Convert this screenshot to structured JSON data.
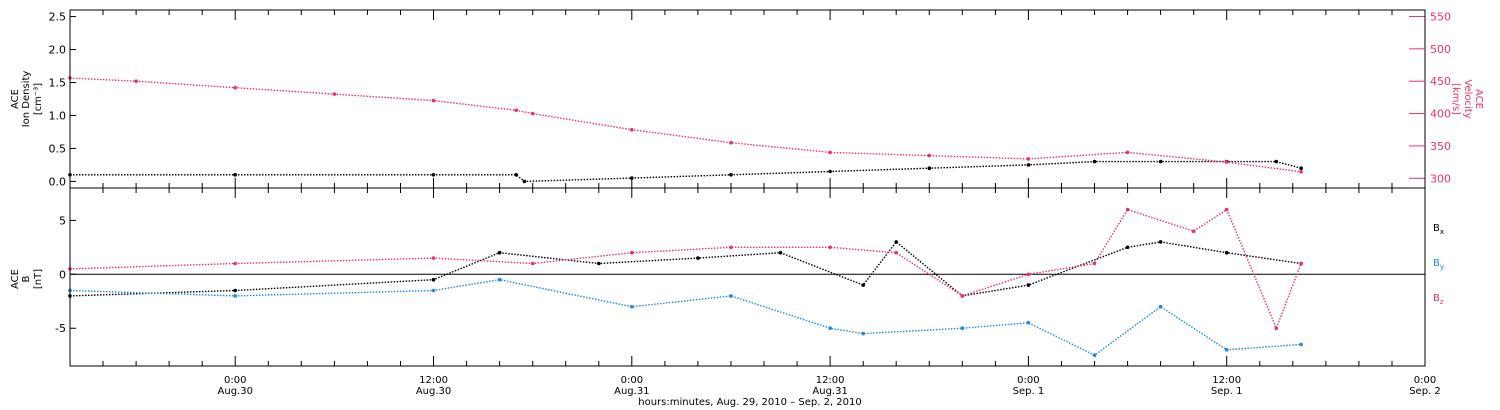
{
  "figure": {
    "xlabel": "hours:minutes, Aug. 29, 2010 – Sep.  2, 2010",
    "time_axis": {
      "range": [
        "2010-08-29T14:00",
        "2010-09-02T00:00"
      ],
      "ticks": [
        {
          "t": "2010-08-30T00:00",
          "time": "0:00",
          "date": "Aug.30"
        },
        {
          "t": "2010-08-30T12:00",
          "time": "12:00",
          "date": "Aug.30"
        },
        {
          "t": "2010-08-31T00:00",
          "time": "0:00",
          "date": "Aug.31"
        },
        {
          "t": "2010-08-31T12:00",
          "time": "12:00",
          "date": "Aug.31"
        },
        {
          "t": "2010-09-01T00:00",
          "time": "0:00",
          "date": "Sep. 1"
        },
        {
          "t": "2010-09-01T12:00",
          "time": "12:00",
          "date": "Sep. 1"
        },
        {
          "t": "2010-09-02T00:00",
          "time": "0:00",
          "date": "Sep. 2"
        }
      ]
    },
    "colors": {
      "black": "#000000",
      "pink": "#e8336a",
      "blue": "#1e88e5"
    }
  },
  "chart_data": [
    {
      "type": "scatter",
      "panel": "top",
      "ylabel_lines": [
        "ACE",
        "Ion Density"
      ],
      "ylabel_unit": "[cm⁻³]",
      "ylim": [
        -0.1,
        2.6
      ],
      "yticks": [
        "0.0",
        "0.5",
        "1.0",
        "1.5",
        "2.0",
        "2.5"
      ],
      "y2label_lines": [
        "ACE",
        "Velocity"
      ],
      "y2label_unit": "[km/s]",
      "y2lim": [
        285,
        560
      ],
      "y2ticks": [
        "300",
        "350",
        "400",
        "450",
        "500",
        "550"
      ],
      "series": [
        {
          "color": "black",
          "axis": "left",
          "x": [
            "2010-08-29T14:00",
            "2010-08-30T00:00",
            "2010-08-30T12:00",
            "2010-08-30T17:00",
            "2010-08-30T17:30",
            "2010-08-31T00:00",
            "2010-08-31T06:00",
            "2010-08-31T12:00",
            "2010-08-31T18:00",
            "2010-09-01T00:00",
            "2010-09-01T04:00",
            "2010-09-01T08:00",
            "2010-09-01T12:00",
            "2010-09-01T15:00",
            "2010-09-01T16:30"
          ],
          "y": [
            0.1,
            0.1,
            0.1,
            0.1,
            0.0,
            0.05,
            0.1,
            0.15,
            0.2,
            0.25,
            0.3,
            0.3,
            0.3,
            0.3,
            0.2
          ]
        },
        {
          "color": "pink",
          "axis": "right",
          "x": [
            "2010-08-29T14:00",
            "2010-08-29T18:00",
            "2010-08-30T00:00",
            "2010-08-30T06:00",
            "2010-08-30T12:00",
            "2010-08-30T17:00",
            "2010-08-30T18:00",
            "2010-08-31T00:00",
            "2010-08-31T06:00",
            "2010-08-31T12:00",
            "2010-08-31T18:00",
            "2010-09-01T00:00",
            "2010-09-01T06:00",
            "2010-09-01T12:00",
            "2010-09-01T16:30"
          ],
          "y": [
            455,
            450,
            440,
            430,
            420,
            405,
            400,
            375,
            355,
            340,
            335,
            330,
            340,
            325,
            310
          ]
        }
      ]
    },
    {
      "type": "scatter",
      "panel": "bottom",
      "ylabel_lines": [
        "ACE",
        "B"
      ],
      "ylabel_unit": "[nT]",
      "ylim": [
        -8.5,
        8
      ],
      "yticks": [
        "-5",
        "0",
        "5"
      ],
      "series": [
        {
          "name": "B",
          "sub": "x",
          "color": "black",
          "x": [
            "2010-08-29T14:00",
            "2010-08-30T00:00",
            "2010-08-30T12:00",
            "2010-08-30T16:00",
            "2010-08-30T22:00",
            "2010-08-31T04:00",
            "2010-08-31T09:00",
            "2010-08-31T14:00",
            "2010-08-31T16:00",
            "2010-08-31T20:00",
            "2010-09-01T00:00",
            "2010-09-01T06:00",
            "2010-09-01T08:00",
            "2010-09-01T12:00",
            "2010-09-01T16:30"
          ],
          "y": [
            -2,
            -1.5,
            -0.5,
            2,
            1,
            1.5,
            2,
            -1,
            3,
            -2,
            -1,
            2.5,
            3,
            2,
            1
          ]
        },
        {
          "name": "B",
          "sub": "y",
          "color": "blue",
          "x": [
            "2010-08-29T14:00",
            "2010-08-30T00:00",
            "2010-08-30T12:00",
            "2010-08-30T16:00",
            "2010-08-31T00:00",
            "2010-08-31T06:00",
            "2010-08-31T12:00",
            "2010-08-31T14:00",
            "2010-08-31T20:00",
            "2010-09-01T00:00",
            "2010-09-01T04:00",
            "2010-09-01T08:00",
            "2010-09-01T12:00",
            "2010-09-01T16:30"
          ],
          "y": [
            -1.5,
            -2,
            -1.5,
            -0.5,
            -3,
            -2,
            -5,
            -5.5,
            -5,
            -4.5,
            -7.5,
            -3,
            -7,
            -6.5
          ]
        },
        {
          "name": "B",
          "sub": "z",
          "color": "pink",
          "x": [
            "2010-08-29T14:00",
            "2010-08-30T00:00",
            "2010-08-30T12:00",
            "2010-08-30T18:00",
            "2010-08-31T00:00",
            "2010-08-31T06:00",
            "2010-08-31T12:00",
            "2010-08-31T16:00",
            "2010-08-31T20:00",
            "2010-09-01T00:00",
            "2010-09-01T04:00",
            "2010-09-01T06:00",
            "2010-09-01T10:00",
            "2010-09-01T12:00",
            "2010-09-01T15:00",
            "2010-09-01T16:30"
          ],
          "y": [
            0.5,
            1,
            1.5,
            1,
            2,
            2.5,
            2.5,
            2,
            -2,
            0,
            1,
            6,
            4,
            6,
            -5,
            1
          ]
        }
      ]
    }
  ]
}
